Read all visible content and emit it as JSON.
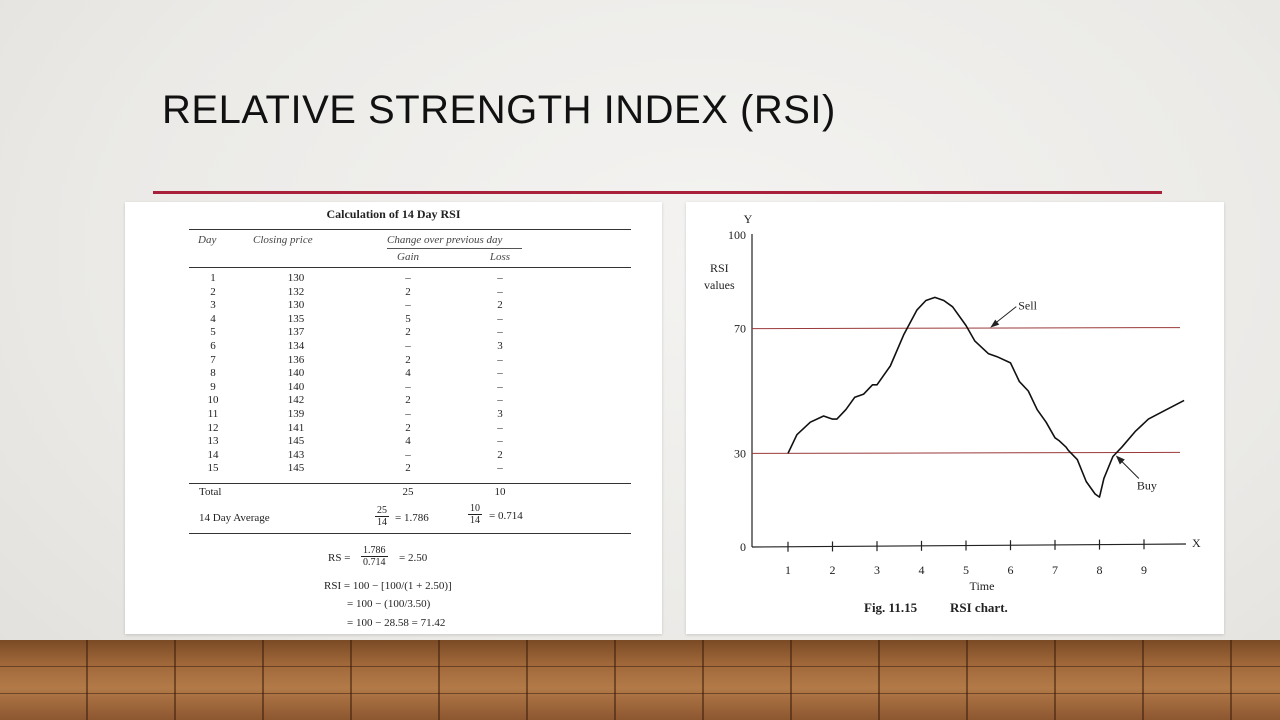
{
  "slide": {
    "title": "RELATIVE STRENGTH INDEX (RSI)"
  },
  "table": {
    "caption": "Calculation of 14 Day RSI",
    "headers": {
      "day": "Day",
      "closing_price": "Closing price",
      "change": "Change over previous day",
      "gain": "Gain",
      "loss": "Loss"
    },
    "rows": [
      {
        "day": "1",
        "price": "130",
        "gain": "–",
        "loss": "–"
      },
      {
        "day": "2",
        "price": "132",
        "gain": "2",
        "loss": "–"
      },
      {
        "day": "3",
        "price": "130",
        "gain": "–",
        "loss": "2"
      },
      {
        "day": "4",
        "price": "135",
        "gain": "5",
        "loss": "–"
      },
      {
        "day": "5",
        "price": "137",
        "gain": "2",
        "loss": "–"
      },
      {
        "day": "6",
        "price": "134",
        "gain": "–",
        "loss": "3"
      },
      {
        "day": "7",
        "price": "136",
        "gain": "2",
        "loss": "–"
      },
      {
        "day": "8",
        "price": "140",
        "gain": "4",
        "loss": "–"
      },
      {
        "day": "9",
        "price": "140",
        "gain": "–",
        "loss": "–"
      },
      {
        "day": "10",
        "price": "142",
        "gain": "2",
        "loss": "–"
      },
      {
        "day": "11",
        "price": "139",
        "gain": "–",
        "loss": "3"
      },
      {
        "day": "12",
        "price": "141",
        "gain": "2",
        "loss": "–"
      },
      {
        "day": "13",
        "price": "145",
        "gain": "4",
        "loss": "–"
      },
      {
        "day": "14",
        "price": "143",
        "gain": "–",
        "loss": "2"
      },
      {
        "day": "15",
        "price": "145",
        "gain": "2",
        "loss": "–"
      }
    ],
    "total_label": "Total",
    "total_gain": "25",
    "total_loss": "10",
    "avg_label": "14 Day Average",
    "avg_gain_num": "25",
    "avg_gain_den": "14",
    "avg_gain_result": "= 1.786",
    "avg_loss_num": "10",
    "avg_loss_den": "14",
    "avg_loss_result": "= 0.714",
    "rs_label": "RS =",
    "rs_num": "1.786",
    "rs_den": "0.714",
    "rs_result": "= 2.50",
    "rsi_line1": "RSI = 100 − [100/(1 + 2.50)]",
    "rsi_line2": "= 100 − (100/3.50)",
    "rsi_line3": "= 100 − 28.58 = 71.42"
  },
  "chart_data": {
    "type": "line",
    "y_axis_letter": "Y",
    "x_axis_letter": "X",
    "ylabel_line1": "RSI",
    "ylabel_line2": "values",
    "xlabel": "Time",
    "caption_number": "Fig. 11.15",
    "caption_text": "RSI chart.",
    "ylim": [
      0,
      100
    ],
    "xlim": [
      0,
      10
    ],
    "y_ticks": [
      "0",
      "30",
      "70",
      "100"
    ],
    "x_ticks": [
      "1",
      "2",
      "3",
      "4",
      "5",
      "6",
      "7",
      "8",
      "9"
    ],
    "reference_lines": [
      70,
      30
    ],
    "annotations": {
      "sell": "Sell",
      "buy": "Buy"
    },
    "series": [
      {
        "x": [
          1.0,
          1.2,
          1.5,
          1.8,
          2.0,
          2.1,
          2.3,
          2.5,
          2.7,
          2.9,
          3.0,
          3.3,
          3.6,
          3.9,
          4.1,
          4.3,
          4.5,
          4.7,
          5.0,
          5.2,
          5.5,
          5.7,
          6.0,
          6.2,
          6.4,
          6.6,
          6.8,
          7.0,
          7.1,
          7.25,
          7.3,
          7.5,
          7.7,
          7.9,
          8.0,
          8.1,
          8.3,
          8.5,
          8.8,
          9.1,
          9.5,
          9.9
        ],
        "y": [
          30,
          36,
          40,
          42,
          41,
          41,
          44,
          48,
          49,
          52,
          52,
          58,
          68,
          76,
          79,
          80,
          79,
          77,
          71,
          66,
          62,
          61,
          59,
          53,
          50,
          44,
          40,
          35,
          34,
          32,
          31,
          28,
          21,
          17,
          16,
          22,
          29,
          32,
          37,
          41,
          44,
          47
        ]
      }
    ]
  }
}
